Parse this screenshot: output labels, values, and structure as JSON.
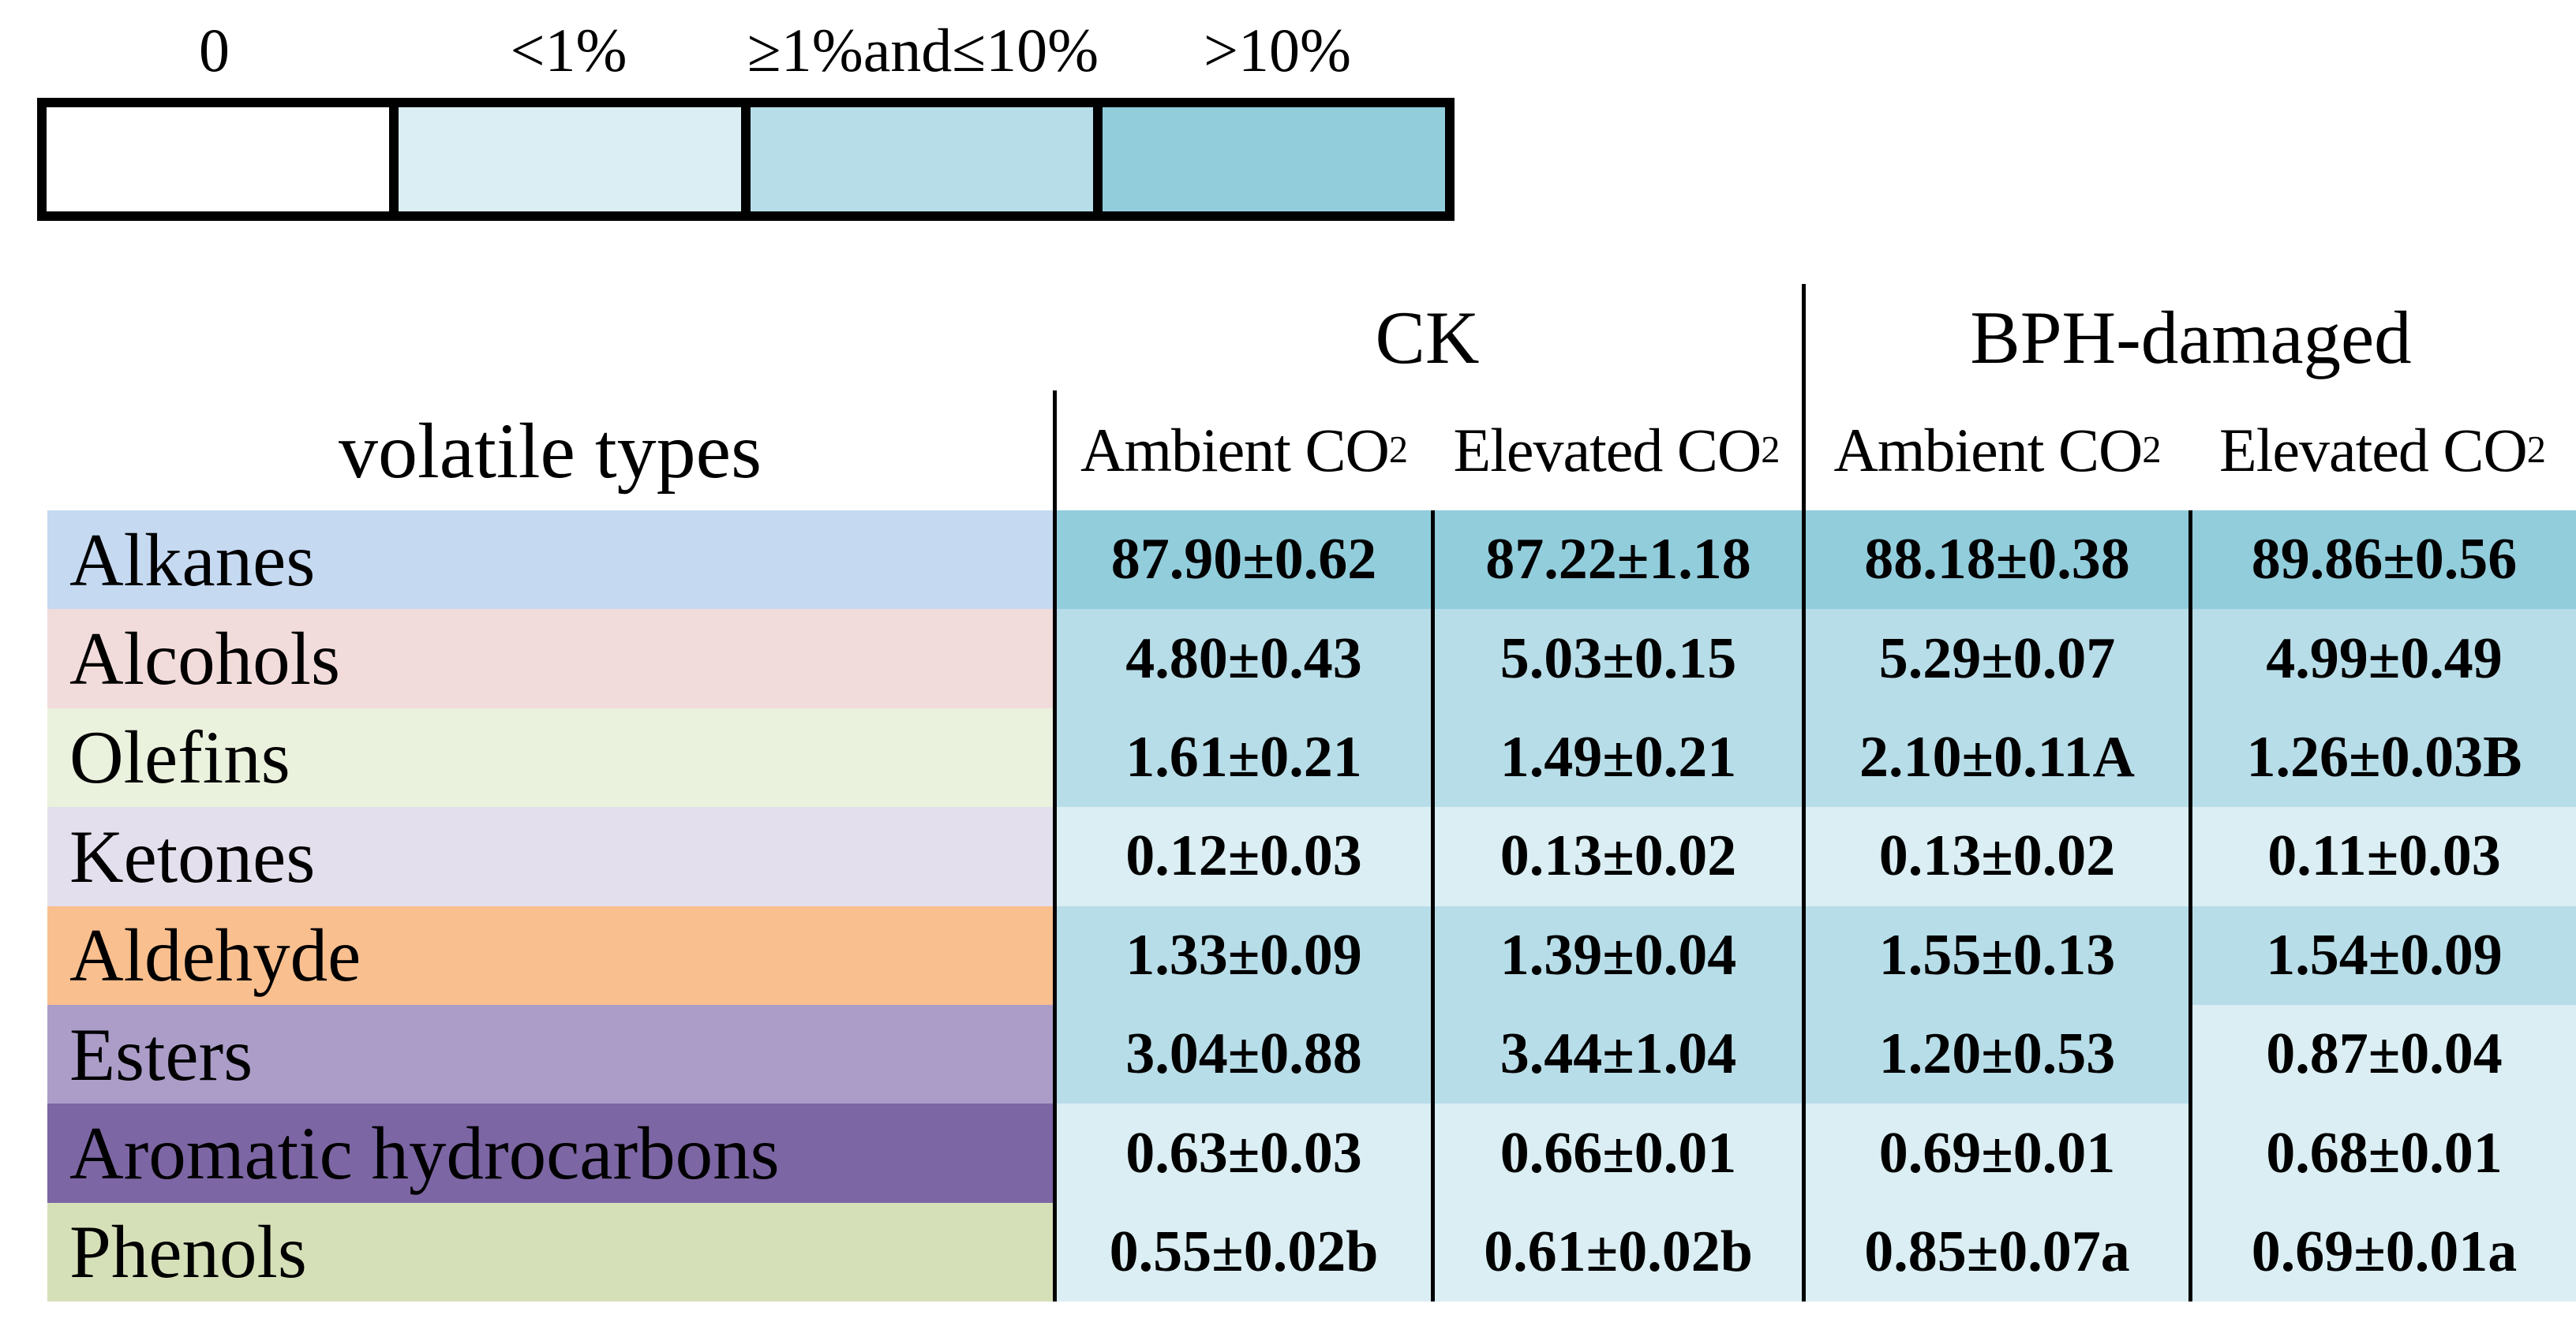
{
  "legend": {
    "bins": [
      {
        "label": "0",
        "color": "#ffffff"
      },
      {
        "label": "<1%",
        "color": "#daeef3"
      },
      {
        "label": "≥1%and≤10%",
        "color": "#b7dde8"
      },
      {
        "label": ">10%",
        "color": "#92cddc"
      }
    ]
  },
  "table": {
    "corner_label": "volatile types",
    "groups": [
      {
        "label": "CK"
      },
      {
        "label": "BPH-damaged"
      }
    ],
    "subheaders": [
      {
        "main": "Ambient CO",
        "sub": "2"
      },
      {
        "main": "Elevated CO",
        "sub": "2"
      },
      {
        "main": "Ambient CO",
        "sub": "2"
      },
      {
        "main": "Elevated CO",
        "sub": "2"
      }
    ],
    "rows": [
      {
        "label": "Alkanes",
        "bg": "#c5d9f1",
        "cells": [
          {
            "text": "87.90±0.62",
            "bin": ">10%",
            "bg": "#92cddc"
          },
          {
            "text": "87.22±1.18",
            "bin": ">10%",
            "bg": "#92cddc"
          },
          {
            "text": "88.18±0.38",
            "bin": ">10%",
            "bg": "#92cddc"
          },
          {
            "text": "89.86±0.56",
            "bin": ">10%",
            "bg": "#92cddc"
          }
        ]
      },
      {
        "label": "Alcohols",
        "bg": "#f2dcdb",
        "cells": [
          {
            "text": "4.80±0.43",
            "bin": "≥1%and≤10%",
            "bg": "#b7dde8"
          },
          {
            "text": "5.03±0.15",
            "bin": "≥1%and≤10%",
            "bg": "#b7dde8"
          },
          {
            "text": "5.29±0.07",
            "bin": "≥1%and≤10%",
            "bg": "#b7dde8"
          },
          {
            "text": "4.99±0.49",
            "bin": "≥1%and≤10%",
            "bg": "#b7dde8"
          }
        ]
      },
      {
        "label": "Olefins",
        "bg": "#eaf1dd",
        "cells": [
          {
            "text": "1.61±0.21",
            "bin": "≥1%and≤10%",
            "bg": "#b7dde8"
          },
          {
            "text": "1.49±0.21",
            "bin": "≥1%and≤10%",
            "bg": "#b7dde8"
          },
          {
            "text": "2.10±0.11A",
            "bin": "≥1%and≤10%",
            "bg": "#b7dde8"
          },
          {
            "text": "1.26±0.03B",
            "bin": "≥1%and≤10%",
            "bg": "#b7dde8"
          }
        ]
      },
      {
        "label": "Ketones",
        "bg": "#e4dfec",
        "cells": [
          {
            "text": "0.12±0.03",
            "bin": "<1%",
            "bg": "#daeef3"
          },
          {
            "text": "0.13±0.02",
            "bin": "<1%",
            "bg": "#daeef3"
          },
          {
            "text": "0.13±0.02",
            "bin": "<1%",
            "bg": "#daeef3"
          },
          {
            "text": "0.11±0.03",
            "bin": "<1%",
            "bg": "#daeef3"
          }
        ]
      },
      {
        "label": "Aldehyde",
        "bg": "#fabf8f",
        "cells": [
          {
            "text": "1.33±0.09",
            "bin": "≥1%and≤10%",
            "bg": "#b7dde8"
          },
          {
            "text": "1.39±0.04",
            "bin": "≥1%and≤10%",
            "bg": "#b7dde8"
          },
          {
            "text": "1.55±0.13",
            "bin": "≥1%and≤10%",
            "bg": "#b7dde8"
          },
          {
            "text": "1.54±0.09",
            "bin": "≥1%and≤10%",
            "bg": "#b7dde8"
          }
        ]
      },
      {
        "label": "Esters",
        "bg": "#ab9dc8",
        "cells": [
          {
            "text": "3.04±0.88",
            "bin": "≥1%and≤10%",
            "bg": "#b7dde8"
          },
          {
            "text": "3.44±1.04",
            "bin": "≥1%and≤10%",
            "bg": "#b7dde8"
          },
          {
            "text": "1.20±0.53",
            "bin": "≥1%and≤10%",
            "bg": "#b7dde8"
          },
          {
            "text": "0.87±0.04",
            "bin": "<1%",
            "bg": "#daeef3"
          }
        ]
      },
      {
        "label": "Aromatic hydrocarbons",
        "bg": "#7d66a4",
        "cells": [
          {
            "text": "0.63±0.03",
            "bin": "<1%",
            "bg": "#daeef3"
          },
          {
            "text": "0.66±0.01",
            "bin": "<1%",
            "bg": "#daeef3"
          },
          {
            "text": "0.69±0.01",
            "bin": "<1%",
            "bg": "#daeef3"
          },
          {
            "text": "0.68±0.01",
            "bin": "<1%",
            "bg": "#daeef3"
          }
        ]
      },
      {
        "label": "Phenols",
        "bg": "#d6e0b8",
        "cells": [
          {
            "text": "0.55±0.02b",
            "bin": "<1%",
            "bg": "#daeef3"
          },
          {
            "text": "0.61±0.02b",
            "bin": "<1%",
            "bg": "#daeef3"
          },
          {
            "text": "0.85±0.07a",
            "bin": "<1%",
            "bg": "#daeef3"
          },
          {
            "text": "0.69±0.01a",
            "bin": "<1%",
            "bg": "#daeef3"
          }
        ]
      }
    ]
  },
  "chart_data": {
    "type": "heatmap",
    "title": "Relative content (%) of volatile types under CK and BPH-damaged plants at ambient and elevated CO2",
    "rows": [
      "Alkanes",
      "Alcohols",
      "Olefins",
      "Ketones",
      "Aldehyde",
      "Esters",
      "Aromatic hydrocarbons",
      "Phenols"
    ],
    "columns": [
      "CK Ambient CO2",
      "CK Elevated CO2",
      "BPH-damaged Ambient CO2",
      "BPH-damaged Elevated CO2"
    ],
    "values": [
      [
        87.9,
        87.22,
        88.18,
        89.86
      ],
      [
        4.8,
        5.03,
        5.29,
        4.99
      ],
      [
        1.61,
        1.49,
        2.1,
        1.26
      ],
      [
        0.12,
        0.13,
        0.13,
        0.11
      ],
      [
        1.33,
        1.39,
        1.55,
        1.54
      ],
      [
        3.04,
        3.44,
        1.2,
        0.87
      ],
      [
        0.63,
        0.66,
        0.69,
        0.68
      ],
      [
        0.55,
        0.61,
        0.85,
        0.69
      ]
    ],
    "sd": [
      [
        0.62,
        1.18,
        0.38,
        0.56
      ],
      [
        0.43,
        0.15,
        0.07,
        0.49
      ],
      [
        0.21,
        0.21,
        0.11,
        0.03
      ],
      [
        0.03,
        0.02,
        0.02,
        0.03
      ],
      [
        0.09,
        0.04,
        0.13,
        0.09
      ],
      [
        0.88,
        1.04,
        0.53,
        0.04
      ],
      [
        0.03,
        0.01,
        0.01,
        0.01
      ],
      [
        0.02,
        0.02,
        0.07,
        0.01
      ]
    ],
    "significance_letters": [
      [
        "",
        "",
        "",
        ""
      ],
      [
        "",
        "",
        "",
        ""
      ],
      [
        "",
        "",
        "A",
        "B"
      ],
      [
        "",
        "",
        "",
        ""
      ],
      [
        "",
        "",
        "",
        ""
      ],
      [
        "",
        "",
        "",
        ""
      ],
      [
        "",
        "",
        "",
        ""
      ],
      [
        "b",
        "b",
        "a",
        "a"
      ]
    ],
    "color_bins": [
      {
        "label": "0",
        "color": "#ffffff"
      },
      {
        "label": "<1%",
        "color": "#daeef3"
      },
      {
        "label": "≥1%and≤10%",
        "color": "#b7dde8"
      },
      {
        "label": ">10%",
        "color": "#92cddc"
      }
    ],
    "legend_position": "top-left",
    "grid": false
  }
}
